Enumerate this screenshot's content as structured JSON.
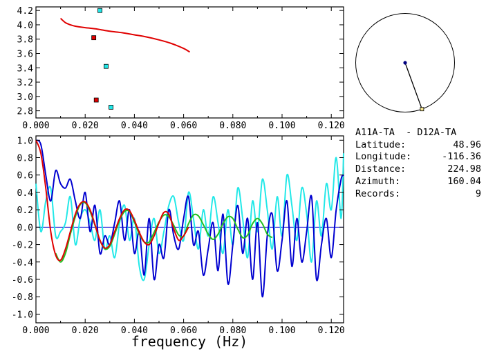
{
  "info": {
    "station_pair": "A11A-TA  - D12A-TA",
    "latitude_label": "Latitude:",
    "latitude_value": "48.96",
    "longitude_label": "Longitude:",
    "longitude_value": "-116.36",
    "distance_label": "Distance:",
    "distance_value": "224.98",
    "azimuth_label": "Azimuth:",
    "azimuth_value": "160.04",
    "records_label": "Records:",
    "records_value": "9"
  },
  "azimuth_map": {
    "azimuth_deg": 160.04
  },
  "colors": {
    "red": "#e00000",
    "blue": "#0000d0",
    "cyan": "#22e8e8",
    "green": "#22c022",
    "map_center": "#000080",
    "map_endpoint": "#f4e48c"
  },
  "chart_data": [
    {
      "type": "scatter",
      "title": "",
      "xlabel": "",
      "ylabel": "",
      "xlim": [
        0.0,
        0.125
      ],
      "ylim": [
        2.7,
        4.25
      ],
      "x_ticks": [
        "0.000",
        "0.020",
        "0.040",
        "0.060",
        "0.080",
        "0.100",
        "0.120"
      ],
      "y_ticks": [
        "2.8",
        "3.0",
        "3.2",
        "3.4",
        "3.6",
        "3.8",
        "4.0",
        "4.2"
      ],
      "series": [
        {
          "kind": "line",
          "color": "#e00000",
          "x": [
            0.01,
            0.012,
            0.014,
            0.016,
            0.02,
            0.025,
            0.03,
            0.035,
            0.04,
            0.045,
            0.05,
            0.055,
            0.06,
            0.0625
          ],
          "y": [
            4.09,
            4.03,
            4.0,
            3.98,
            3.96,
            3.94,
            3.91,
            3.89,
            3.86,
            3.83,
            3.79,
            3.74,
            3.67,
            3.62
          ]
        },
        {
          "kind": "points",
          "marker": "square",
          "color": "#e00000",
          "x": [
            0.0235,
            0.0245
          ],
          "y": [
            3.82,
            2.95
          ]
        },
        {
          "kind": "points",
          "marker": "square",
          "color": "#22e8e8",
          "x": [
            0.026,
            0.0285,
            0.0305
          ],
          "y": [
            4.2,
            3.42,
            2.85
          ]
        }
      ]
    },
    {
      "type": "line",
      "title": "",
      "xlabel": "frequency (Hz)",
      "ylabel": "",
      "xlim": [
        0.0,
        0.125
      ],
      "ylim": [
        -1.1,
        1.05
      ],
      "x_ticks": [
        "0.000",
        "0.020",
        "0.040",
        "0.060",
        "0.080",
        "0.100",
        "0.120"
      ],
      "y_ticks": [
        "1.0",
        "0.8",
        "0.6",
        "0.4",
        "0.2",
        "0.0",
        "-0.2",
        "-0.4",
        "-0.6",
        "-0.8",
        "-1.0"
      ],
      "series": [
        {
          "color": "#e00000",
          "x": [
            0.0,
            0.002,
            0.004,
            0.006,
            0.008,
            0.01,
            0.012,
            0.014,
            0.016,
            0.018,
            0.02,
            0.022,
            0.024,
            0.026,
            0.028,
            0.03,
            0.032,
            0.034,
            0.036,
            0.038,
            0.04,
            0.042,
            0.044,
            0.046,
            0.048,
            0.05,
            0.052,
            0.054,
            0.056,
            0.058,
            0.06,
            0.062
          ],
          "y": [
            1.0,
            0.85,
            0.45,
            -0.05,
            -0.32,
            -0.38,
            -0.25,
            -0.05,
            0.15,
            0.27,
            0.29,
            0.2,
            0.03,
            -0.15,
            -0.24,
            -0.2,
            -0.05,
            0.1,
            0.2,
            0.19,
            0.08,
            -0.06,
            -0.17,
            -0.2,
            -0.1,
            0.05,
            0.17,
            0.15,
            -0.02,
            -0.15,
            -0.1,
            0.0
          ]
        },
        {
          "color": "#22c022",
          "x": [
            0.008,
            0.01,
            0.012,
            0.014,
            0.016,
            0.018,
            0.02,
            0.022,
            0.024,
            0.026,
            0.028,
            0.03,
            0.032,
            0.034,
            0.036,
            0.038,
            0.04,
            0.042,
            0.044,
            0.046,
            0.048,
            0.05,
            0.052,
            0.054,
            0.056,
            0.058,
            0.06,
            0.062,
            0.064,
            0.066,
            0.068,
            0.07,
            0.072,
            0.074,
            0.076,
            0.078,
            0.08,
            0.082,
            0.084,
            0.086,
            0.088,
            0.09,
            0.092,
            0.094,
            0.096
          ],
          "y": [
            -0.3,
            -0.4,
            -0.3,
            -0.08,
            0.12,
            0.26,
            0.28,
            0.18,
            0.02,
            -0.15,
            -0.25,
            -0.22,
            -0.08,
            0.08,
            0.18,
            0.18,
            0.06,
            -0.08,
            -0.17,
            -0.17,
            -0.06,
            0.06,
            0.14,
            0.12,
            0.02,
            -0.09,
            -0.1,
            0.04,
            0.14,
            0.13,
            0.03,
            -0.08,
            -0.14,
            -0.08,
            0.04,
            0.12,
            0.1,
            -0.02,
            -0.12,
            -0.09,
            0.04,
            0.1,
            0.04,
            -0.08,
            -0.12
          ]
        },
        {
          "color": "#0000d0",
          "x": [
            0.0,
            0.002,
            0.004,
            0.006,
            0.008,
            0.01,
            0.012,
            0.014,
            0.016,
            0.018,
            0.02,
            0.022,
            0.024,
            0.026,
            0.028,
            0.03,
            0.032,
            0.034,
            0.036,
            0.038,
            0.04,
            0.042,
            0.044,
            0.046,
            0.048,
            0.05,
            0.052,
            0.054,
            0.056,
            0.058,
            0.06,
            0.062,
            0.064,
            0.066,
            0.068,
            0.07,
            0.072,
            0.074,
            0.076,
            0.078,
            0.08,
            0.082,
            0.084,
            0.086,
            0.088,
            0.09,
            0.092,
            0.094,
            0.096,
            0.098,
            0.1,
            0.102,
            0.104,
            0.106,
            0.108,
            0.11,
            0.112,
            0.114,
            0.116,
            0.118,
            0.12,
            0.122,
            0.124,
            0.125
          ],
          "y": [
            1.0,
            0.95,
            0.6,
            0.3,
            0.65,
            0.5,
            0.45,
            0.55,
            0.3,
            0.1,
            0.4,
            -0.05,
            0.25,
            -0.3,
            -0.1,
            -0.2,
            0.05,
            0.3,
            -0.15,
            0.2,
            -0.3,
            -0.05,
            -0.55,
            0.1,
            -0.6,
            -0.2,
            -0.35,
            0.2,
            -0.1,
            -0.25,
            0.1,
            0.35,
            -0.2,
            -0.05,
            -0.55,
            -0.25,
            0.05,
            -0.5,
            0.15,
            -0.65,
            -0.2,
            0.25,
            -0.3,
            0.1,
            -0.6,
            0.05,
            -0.8,
            -0.1,
            0.15,
            -0.5,
            -0.15,
            0.3,
            -0.45,
            0.1,
            -0.4,
            -0.05,
            0.35,
            -0.6,
            -0.2,
            0.1,
            -0.35,
            0.2,
            0.55,
            0.6
          ]
        },
        {
          "color": "#22e8e8",
          "x": [
            0.0,
            0.002,
            0.004,
            0.006,
            0.008,
            0.01,
            0.012,
            0.014,
            0.016,
            0.018,
            0.02,
            0.022,
            0.024,
            0.026,
            0.028,
            0.03,
            0.032,
            0.034,
            0.036,
            0.038,
            0.04,
            0.042,
            0.044,
            0.046,
            0.048,
            0.05,
            0.052,
            0.054,
            0.056,
            0.058,
            0.06,
            0.062,
            0.064,
            0.066,
            0.068,
            0.07,
            0.072,
            0.074,
            0.076,
            0.078,
            0.08,
            0.082,
            0.084,
            0.086,
            0.088,
            0.09,
            0.092,
            0.094,
            0.096,
            0.098,
            0.1,
            0.102,
            0.104,
            0.106,
            0.108,
            0.11,
            0.112,
            0.114,
            0.116,
            0.118,
            0.12,
            0.122,
            0.124,
            0.125
          ],
          "y": [
            0.5,
            -0.05,
            0.3,
            0.45,
            -0.1,
            -0.05,
            0.05,
            0.35,
            -0.2,
            0.1,
            0.2,
            0.05,
            -0.15,
            0.2,
            -0.25,
            -0.1,
            -0.35,
            0.05,
            0.25,
            -0.15,
            0.1,
            -0.45,
            -0.6,
            -0.2,
            0.1,
            -0.3,
            -0.05,
            0.25,
            0.35,
            0.05,
            -0.15,
            0.4,
            0.1,
            -0.25,
            0.2,
            -0.1,
            0.35,
            0.05,
            -0.3,
            0.2,
            -0.2,
            0.45,
            0.1,
            -0.35,
            0.3,
            -0.05,
            0.55,
            0.2,
            -0.25,
            0.35,
            -0.1,
            0.6,
            0.25,
            -0.15,
            0.45,
            0.15,
            -0.4,
            0.3,
            -0.1,
            0.5,
            0.2,
            0.8,
            0.1,
            0.85
          ]
        }
      ]
    }
  ]
}
